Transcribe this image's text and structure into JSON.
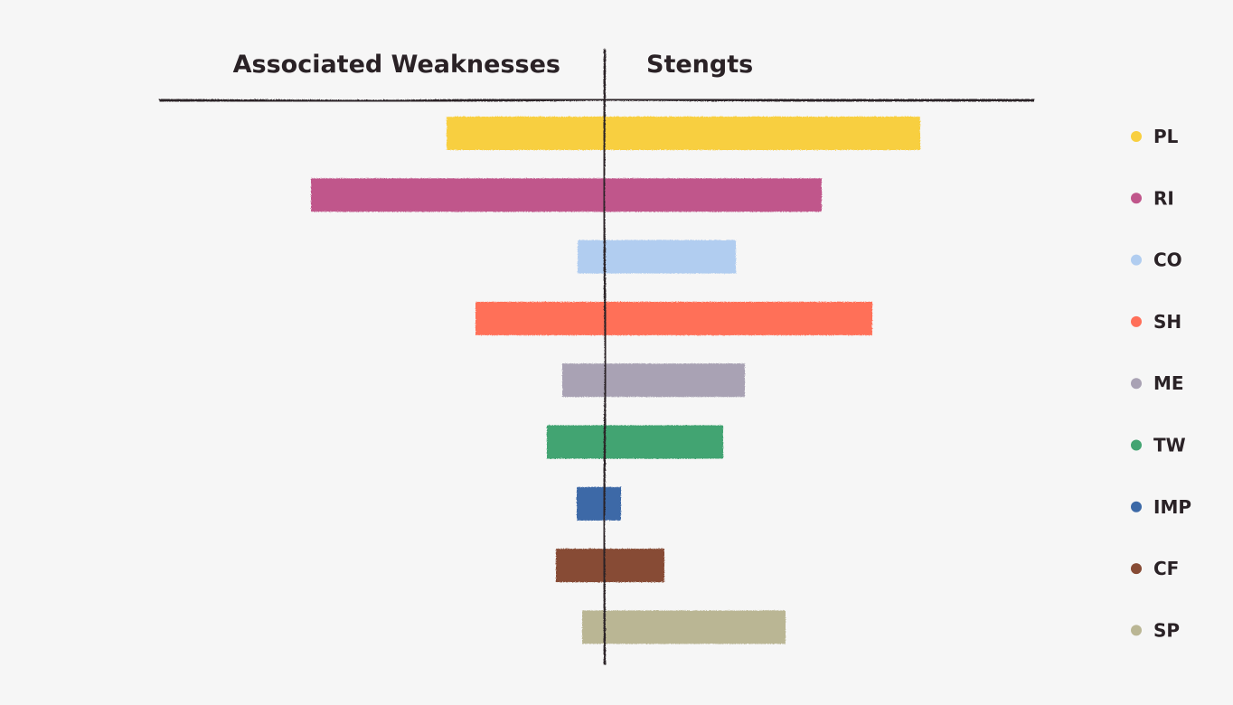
{
  "chart_data": {
    "type": "bar",
    "orientation": "horizontal-diverging",
    "left_heading": "Associated Weaknesses",
    "right_heading": "Stengts",
    "categories": [
      "PL",
      "RI",
      "CO",
      "SH",
      "ME",
      "TW",
      "IMP",
      "CF",
      "SP"
    ],
    "series": [
      {
        "name": "Associated Weaknesses",
        "values": [
          175,
          325,
          30,
          143,
          47,
          64,
          31,
          54,
          25
        ]
      },
      {
        "name": "Stengts",
        "values": [
          349,
          240,
          145,
          296,
          155,
          131,
          18,
          66,
          200
        ]
      }
    ],
    "colors": [
      "#f8cf3f",
      "#c0568b",
      "#b1cdf0",
      "#ff6f59",
      "#a9a2b4",
      "#43a472",
      "#3c69a7",
      "#874b35",
      "#bab694"
    ],
    "legend": {
      "position": "right",
      "items": [
        "PL",
        "RI",
        "CO",
        "SH",
        "ME",
        "TW",
        "IMP",
        "CF",
        "SP"
      ]
    },
    "grid": false
  }
}
